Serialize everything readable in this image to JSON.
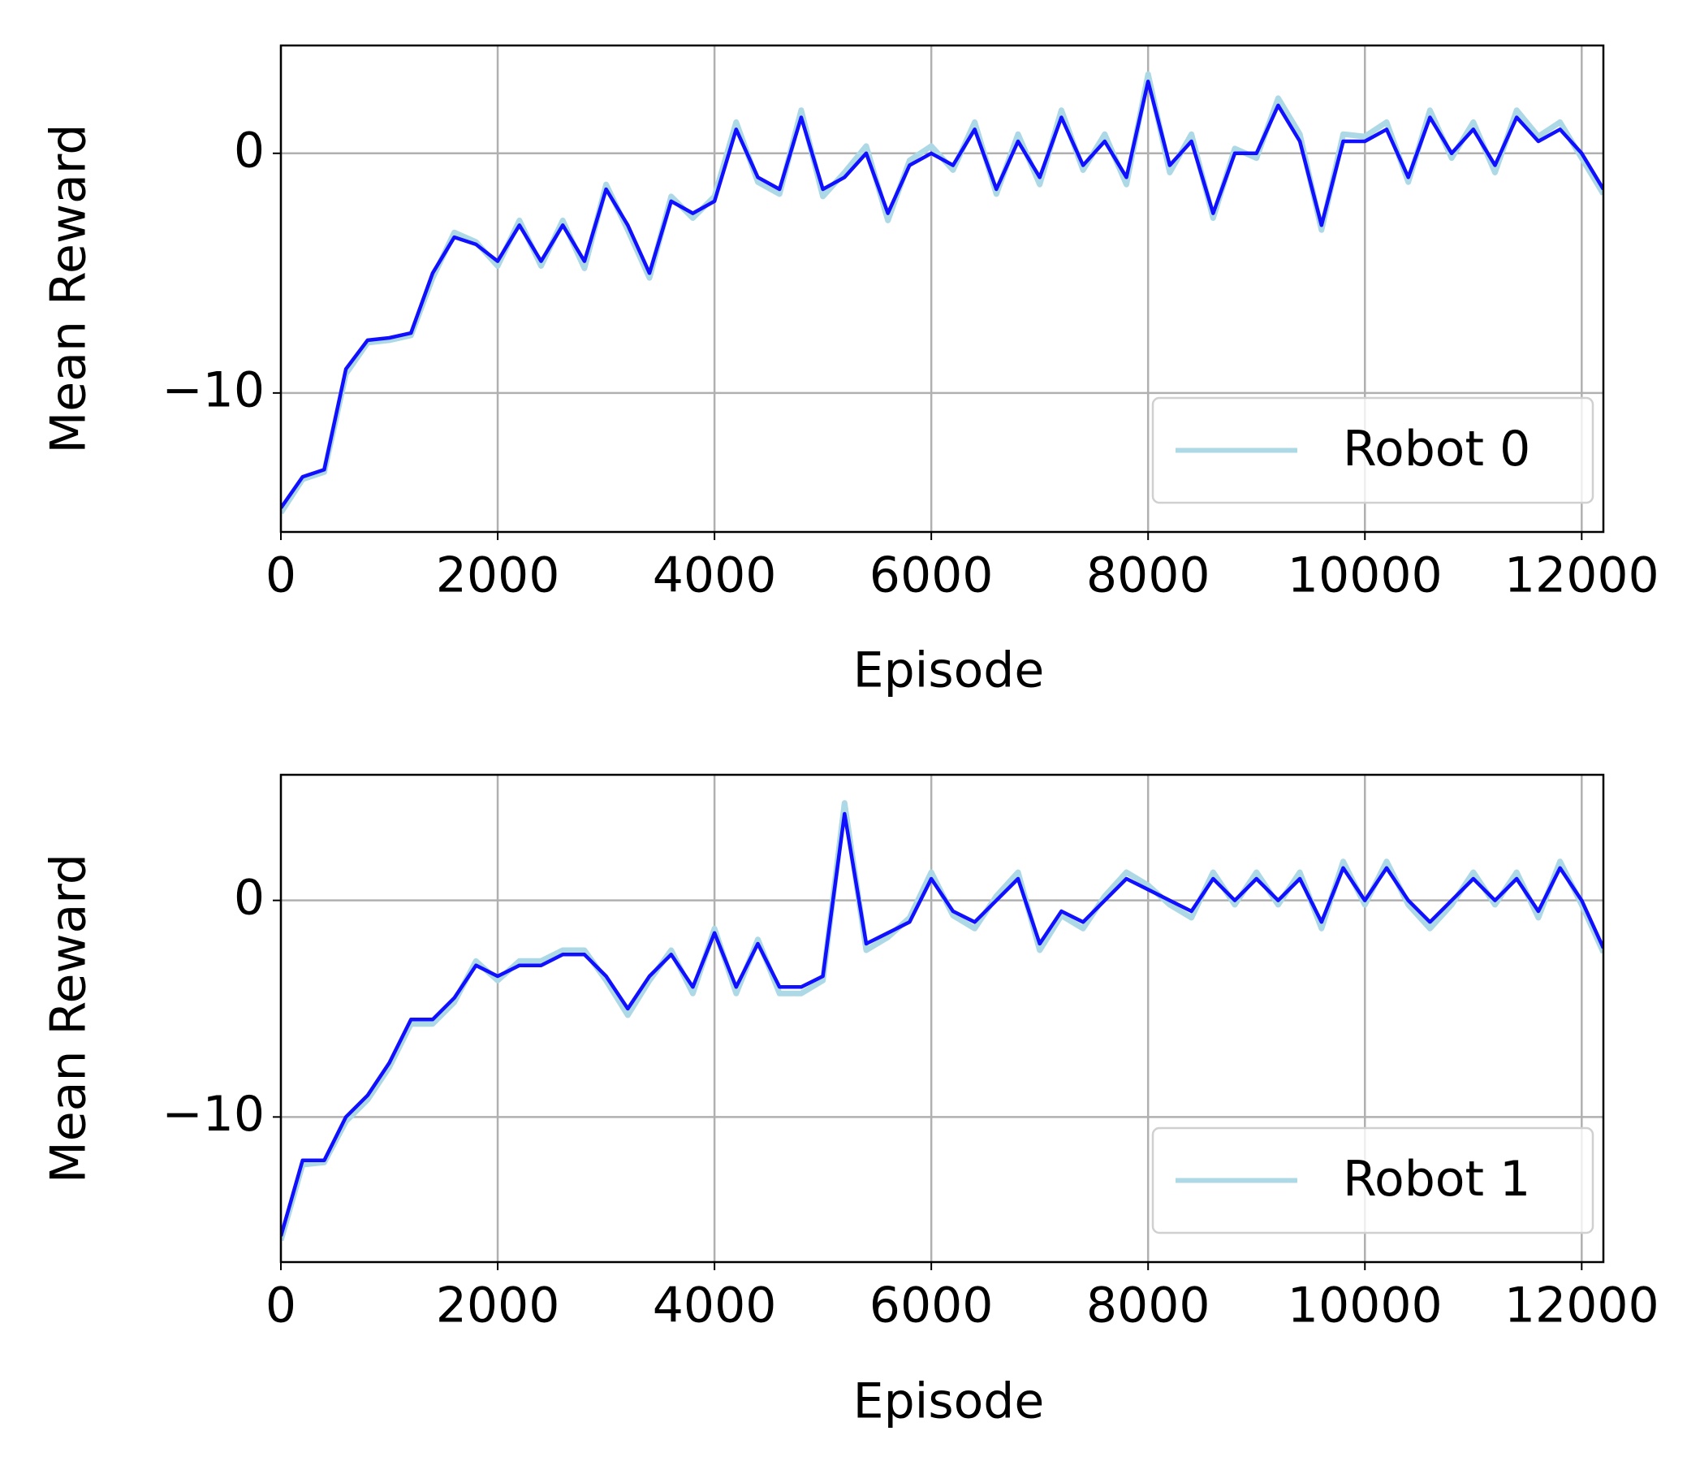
{
  "chart_data": [
    {
      "type": "line",
      "xlabel": "Episode",
      "ylabel": "Mean Reward",
      "x": [
        0,
        200,
        400,
        600,
        800,
        1000,
        1200,
        1400,
        1600,
        1800,
        2000,
        2200,
        2400,
        2600,
        2800,
        3000,
        3200,
        3400,
        3600,
        3800,
        4000,
        4200,
        4400,
        4600,
        4800,
        5000,
        5200,
        5400,
        5600,
        5800,
        6000,
        6200,
        6400,
        6600,
        6800,
        7000,
        7200,
        7400,
        7600,
        7800,
        8000,
        8200,
        8400,
        8600,
        8800,
        9000,
        9200,
        9400,
        9600,
        9800,
        10000,
        10200,
        10400,
        10600,
        10800,
        11000,
        11200,
        11400,
        11600,
        11800,
        12000,
        12200
      ],
      "series": [
        {
          "name": "Robot 0",
          "color": "#add8e6",
          "values": [
            -15,
            -13.6,
            -13.3,
            -9.2,
            -7.9,
            -7.8,
            -7.6,
            -5.2,
            -3.3,
            -3.7,
            -4.7,
            -2.8,
            -4.7,
            -2.8,
            -4.8,
            -1.3,
            -3.2,
            -5.2,
            -1.8,
            -2.7,
            -1.8,
            1.3,
            -1.2,
            -1.7,
            1.8,
            -1.8,
            -0.8,
            0.3,
            -2.8,
            -0.3,
            0.3,
            -0.7,
            1.3,
            -1.7,
            0.8,
            -1.3,
            1.8,
            -0.7,
            0.8,
            -1.3,
            3.3,
            -0.8,
            0.8,
            -2.7,
            0.2,
            -0.2,
            2.3,
            0.8,
            -3.2,
            0.8,
            0.7,
            1.3,
            -1.2,
            1.8,
            -0.2,
            1.3,
            -0.8,
            1.8,
            0.7,
            1.3,
            -0.2,
            -1.7
          ]
        },
        {
          "color": "#1010ff",
          "values": [
            -14.8,
            -13.5,
            -13.2,
            -9,
            -7.8,
            -7.7,
            -7.5,
            -5,
            -3.5,
            -3.8,
            -4.5,
            -3,
            -4.5,
            -3,
            -4.5,
            -1.5,
            -3,
            -5,
            -2,
            -2.5,
            -2,
            1,
            -1,
            -1.5,
            1.5,
            -1.5,
            -1,
            0,
            -2.5,
            -0.5,
            0,
            -0.5,
            1,
            -1.5,
            0.5,
            -1,
            1.5,
            -0.5,
            0.5,
            -1,
            3,
            -0.5,
            0.5,
            -2.5,
            0,
            0,
            2,
            0.5,
            -3,
            0.5,
            0.5,
            1,
            -1,
            1.5,
            0,
            1,
            -0.5,
            1.5,
            0.5,
            1,
            0,
            -1.5
          ]
        }
      ],
      "xlim": [
        0,
        12200
      ],
      "ylim": [
        -15.8,
        4.5
      ],
      "xticks": [
        0,
        2000,
        4000,
        6000,
        8000,
        10000,
        12000
      ],
      "yticks": [
        {
          "value": -10,
          "label": "−10"
        },
        0
      ],
      "grid": true,
      "legend": "lower right"
    },
    {
      "type": "line",
      "xlabel": "Episode",
      "ylabel": "Mean Reward",
      "x": [
        0,
        200,
        400,
        600,
        800,
        1000,
        1200,
        1400,
        1600,
        1800,
        2000,
        2200,
        2400,
        2600,
        2800,
        3000,
        3200,
        3400,
        3600,
        3800,
        4000,
        4200,
        4400,
        4600,
        4800,
        5000,
        5200,
        5400,
        5600,
        5800,
        6000,
        6200,
        6400,
        6600,
        6800,
        7000,
        7200,
        7400,
        7600,
        7800,
        8000,
        8200,
        8400,
        8600,
        8800,
        9000,
        9200,
        9400,
        9600,
        9800,
        10000,
        10200,
        10400,
        10600,
        10800,
        11000,
        11200,
        11400,
        11600,
        11800,
        12000,
        12200
      ],
      "series": [
        {
          "name": "Robot 1",
          "color": "#add8e6",
          "values": [
            -15.7,
            -12.2,
            -12.1,
            -10.2,
            -9.2,
            -7.7,
            -5.7,
            -5.7,
            -4.7,
            -2.8,
            -3.7,
            -2.8,
            -2.8,
            -2.3,
            -2.3,
            -3.7,
            -5.3,
            -3.7,
            -2.3,
            -4.3,
            -1.3,
            -4.3,
            -1.8,
            -4.3,
            -4.3,
            -3.7,
            4.5,
            -2.3,
            -1.7,
            -0.8,
            1.3,
            -0.7,
            -1.3,
            0.2,
            1.3,
            -2.3,
            -0.7,
            -1.3,
            0.2,
            1.3,
            0.7,
            -0.2,
            -0.8,
            1.3,
            -0.2,
            1.3,
            -0.2,
            1.3,
            -1.3,
            1.8,
            -0.2,
            1.8,
            -0.2,
            -1.3,
            -0.2,
            1.3,
            -0.2,
            1.3,
            -0.8,
            1.8,
            -0.2,
            -2.4
          ]
        },
        {
          "color": "#1010ff",
          "values": [
            -15.5,
            -12,
            -12,
            -10,
            -9,
            -7.5,
            -5.5,
            -5.5,
            -4.5,
            -3,
            -3.5,
            -3,
            -3,
            -2.5,
            -2.5,
            -3.5,
            -5,
            -3.5,
            -2.5,
            -4,
            -1.5,
            -4,
            -2,
            -4,
            -4,
            -3.5,
            4,
            -2,
            -1.5,
            -1,
            1,
            -0.5,
            -1,
            0,
            1,
            -2,
            -0.5,
            -1,
            0,
            1,
            0.5,
            0,
            -0.5,
            1,
            0,
            1,
            0,
            1,
            -1,
            1.5,
            0,
            1.5,
            0,
            -1,
            0,
            1,
            0,
            1,
            -0.5,
            1.5,
            0,
            -2.2
          ]
        }
      ],
      "xlim": [
        0,
        12200
      ],
      "ylim": [
        -16.7,
        5.8
      ],
      "xticks": [
        0,
        2000,
        4000,
        6000,
        8000,
        10000,
        12000
      ],
      "yticks": [
        {
          "value": -10,
          "label": "−10"
        },
        0
      ],
      "grid": true,
      "legend": "lower right"
    }
  ]
}
